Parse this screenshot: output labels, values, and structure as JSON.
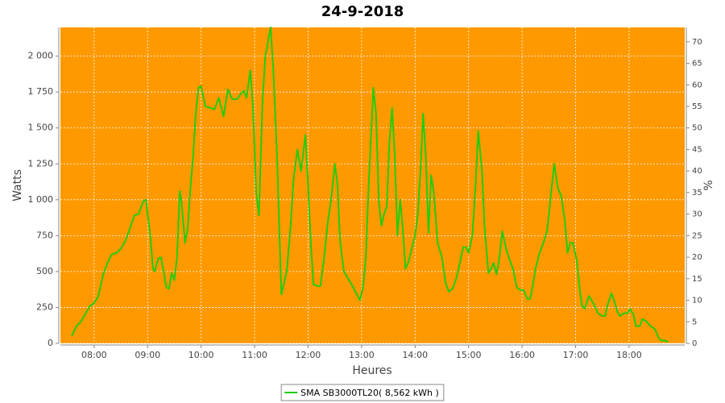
{
  "chart_data": {
    "type": "line",
    "title": "24-9-2018",
    "x_label": "Heures",
    "y_label": "Watts",
    "y2_label": "%",
    "background": "#ff9900",
    "grid": true,
    "legend": "bottom",
    "xlim": [
      7.37,
      19.04
    ],
    "xticks": [
      {
        "value": 8,
        "label": "08:00"
      },
      {
        "value": 9,
        "label": "09:00"
      },
      {
        "value": 10,
        "label": "10:00"
      },
      {
        "value": 11,
        "label": "11:00"
      },
      {
        "value": 12,
        "label": "12:00"
      },
      {
        "value": 13,
        "label": "13:00"
      },
      {
        "value": 14,
        "label": "14:00"
      },
      {
        "value": 15,
        "label": "15:00"
      },
      {
        "value": 16,
        "label": "16:00"
      },
      {
        "value": 17,
        "label": "17:00"
      },
      {
        "value": 18,
        "label": "18:00"
      }
    ],
    "ylim": [
      0,
      2200
    ],
    "yticks": [
      0,
      250,
      500,
      750,
      {
        "value": 1000,
        "label": "1 000"
      },
      {
        "value": 1250,
        "label": "1 250"
      },
      {
        "value": 1500,
        "label": "1 500"
      },
      {
        "value": 1750,
        "label": "1 750"
      },
      {
        "value": 2000,
        "label": "2 000"
      }
    ],
    "y2lim": [
      0,
      73.33
    ],
    "y2ticks": [
      0,
      5,
      10,
      15,
      20,
      25,
      30,
      35,
      40,
      45,
      50,
      55,
      60,
      65,
      70
    ],
    "x": [
      7.58,
      7.67,
      7.75,
      7.83,
      7.92,
      8.0,
      8.08,
      8.17,
      8.25,
      8.33,
      8.42,
      8.5,
      8.58,
      8.67,
      8.75,
      8.83,
      8.92,
      8.97,
      9.0,
      9.05,
      9.1,
      9.13,
      9.2,
      9.25,
      9.3,
      9.35,
      9.4,
      9.45,
      9.5,
      9.55,
      9.6,
      9.63,
      9.7,
      9.75,
      9.8,
      9.85,
      9.9,
      9.95,
      10.0,
      10.08,
      10.17,
      10.25,
      10.33,
      10.42,
      10.5,
      10.58,
      10.67,
      10.75,
      10.8,
      10.85,
      10.92,
      10.97,
      11.03,
      11.08,
      11.15,
      11.2,
      11.25,
      11.3,
      11.35,
      11.42,
      11.5,
      11.55,
      11.6,
      11.67,
      11.73,
      11.8,
      11.87,
      11.95,
      12.0,
      12.05,
      12.1,
      12.17,
      12.23,
      12.3,
      12.37,
      12.43,
      12.5,
      12.55,
      12.6,
      12.67,
      12.75,
      12.83,
      12.9,
      12.97,
      13.03,
      13.08,
      13.12,
      13.17,
      13.22,
      13.27,
      13.32,
      13.37,
      13.42,
      13.47,
      13.52,
      13.57,
      13.62,
      13.67,
      13.72,
      13.77,
      13.82,
      13.87,
      13.93,
      14.0,
      14.05,
      14.1,
      14.15,
      14.2,
      14.25,
      14.3,
      14.35,
      14.42,
      14.5,
      14.57,
      14.63,
      14.7,
      14.77,
      14.83,
      14.9,
      14.95,
      15.0,
      15.07,
      15.13,
      15.18,
      15.25,
      15.3,
      15.37,
      15.42,
      15.47,
      15.52,
      15.57,
      15.63,
      15.7,
      15.75,
      15.83,
      15.9,
      15.97,
      16.03,
      16.1,
      16.15,
      16.2,
      16.25,
      16.32,
      16.4,
      16.47,
      16.53,
      16.6,
      16.67,
      16.73,
      16.8,
      16.85,
      16.9,
      16.95,
      17.02,
      17.07,
      17.12,
      17.17,
      17.25,
      17.33,
      17.42,
      17.5,
      17.55,
      17.6,
      17.67,
      17.72,
      17.78,
      17.83,
      17.9,
      17.97,
      18.02,
      18.08,
      18.13,
      18.2,
      18.25,
      18.33,
      18.4,
      18.48,
      18.55,
      18.6,
      18.67,
      18.73
    ],
    "series": [
      {
        "name": "SMA SB3000TL20( 8,562 kWh )",
        "color": "#22cc11",
        "values": [
          50,
          120,
          150,
          200,
          260,
          280,
          330,
          480,
          560,
          620,
          630,
          660,
          710,
          800,
          890,
          900,
          990,
          1000,
          900,
          750,
          520,
          500,
          590,
          600,
          500,
          390,
          380,
          490,
          440,
          600,
          1060,
          1000,
          700,
          800,
          1080,
          1300,
          1600,
          1780,
          1790,
          1650,
          1640,
          1630,
          1710,
          1580,
          1770,
          1700,
          1700,
          1740,
          1760,
          1710,
          1900,
          1650,
          1050,
          890,
          1700,
          2000,
          2100,
          2200,
          1900,
          1300,
          340,
          420,
          500,
          800,
          1150,
          1350,
          1200,
          1450,
          1100,
          700,
          410,
          400,
          400,
          600,
          850,
          1000,
          1250,
          1100,
          700,
          500,
          450,
          400,
          350,
          300,
          400,
          600,
          1000,
          1400,
          1780,
          1600,
          1000,
          820,
          900,
          950,
          1400,
          1640,
          1300,
          750,
          1000,
          800,
          520,
          560,
          650,
          750,
          900,
          1200,
          1600,
          1300,
          770,
          1170,
          1050,
          700,
          600,
          420,
          360,
          380,
          450,
          550,
          670,
          670,
          630,
          750,
          1100,
          1480,
          1200,
          800,
          490,
          520,
          560,
          480,
          580,
          780,
          660,
          600,
          520,
          390,
          370,
          370,
          310,
          310,
          400,
          520,
          620,
          700,
          790,
          1000,
          1250,
          1080,
          1030,
          850,
          630,
          700,
          700,
          580,
          400,
          260,
          240,
          330,
          280,
          210,
          190,
          190,
          270,
          350,
          300,
          220,
          190,
          210,
          210,
          240,
          200,
          120,
          120,
          170,
          150,
          120,
          100,
          40,
          20,
          20,
          10
        ]
      }
    ]
  }
}
